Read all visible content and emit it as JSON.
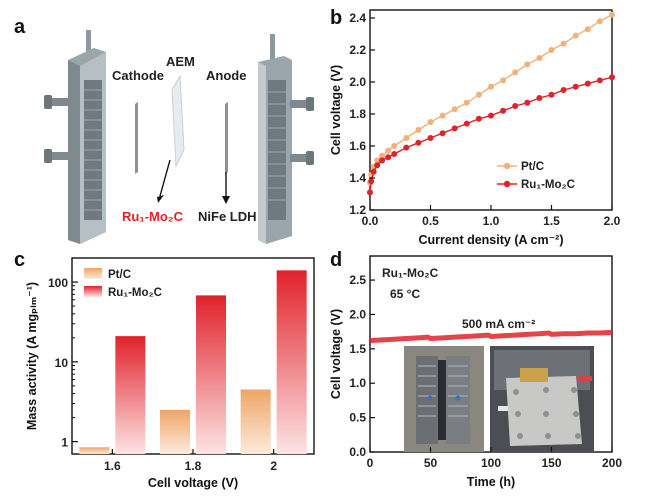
{
  "panels": {
    "a": {
      "letter": "a",
      "labels": {
        "aem": "AEM",
        "cathode": "Cathode",
        "anode": "Anode",
        "cathode_catalyst": "Ru₁-Mo₂C",
        "anode_catalyst": "NiFe LDH"
      },
      "colors": {
        "catalyst_red": "#e0222a"
      }
    },
    "b": {
      "letter": "b"
    },
    "c": {
      "letter": "c"
    },
    "d": {
      "letter": "d"
    }
  },
  "chart_data": [
    {
      "id": "b",
      "type": "line",
      "xlabel": "Current density (A cm⁻²)",
      "ylabel": "Cell voltage (V)",
      "xlim": [
        0,
        2.0
      ],
      "ylim": [
        1.2,
        2.45
      ],
      "xticks": [
        "0.0",
        "0.5",
        "1.0",
        "1.5",
        "2.0"
      ],
      "yticks": [
        "1.2",
        "1.4",
        "1.6",
        "1.8",
        "2.0",
        "2.2",
        "2.4"
      ],
      "legend": "lower-right",
      "series": [
        {
          "name": "Pt/C",
          "color": "#f2b07a",
          "x": [
            0,
            0.01,
            0.03,
            0.06,
            0.1,
            0.15,
            0.2,
            0.3,
            0.4,
            0.5,
            0.6,
            0.7,
            0.8,
            0.9,
            1.0,
            1.1,
            1.2,
            1.3,
            1.4,
            1.5,
            1.6,
            1.7,
            1.8,
            1.9,
            2.0
          ],
          "y": [
            1.37,
            1.42,
            1.47,
            1.51,
            1.54,
            1.57,
            1.6,
            1.65,
            1.7,
            1.75,
            1.79,
            1.83,
            1.87,
            1.92,
            1.97,
            2.01,
            2.06,
            2.11,
            2.15,
            2.2,
            2.24,
            2.29,
            2.33,
            2.38,
            2.42
          ]
        },
        {
          "name": "Ru₁-Mo₂C",
          "color": "#e0222a",
          "x": [
            0,
            0.01,
            0.03,
            0.06,
            0.1,
            0.15,
            0.2,
            0.3,
            0.4,
            0.5,
            0.6,
            0.7,
            0.8,
            0.9,
            1.0,
            1.1,
            1.2,
            1.3,
            1.4,
            1.5,
            1.6,
            1.7,
            1.8,
            1.9,
            2.0
          ],
          "y": [
            1.31,
            1.38,
            1.44,
            1.48,
            1.51,
            1.53,
            1.55,
            1.59,
            1.62,
            1.65,
            1.68,
            1.71,
            1.74,
            1.77,
            1.79,
            1.82,
            1.85,
            1.87,
            1.9,
            1.92,
            1.95,
            1.97,
            1.99,
            2.01,
            2.03
          ]
        }
      ]
    },
    {
      "id": "c",
      "type": "bar",
      "xlabel": "Cell voltage (V)",
      "ylabel": "Mass activity (A mgₚₗₘ⁻¹)",
      "yscale": "log",
      "ylim": [
        0.7,
        200
      ],
      "yticks": [
        "1",
        "10",
        "100"
      ],
      "categories": [
        "1.6",
        "1.8",
        "2"
      ],
      "legend": "top-left",
      "series": [
        {
          "name": "Pt/C",
          "color": "#f2b07a",
          "values": [
            0.85,
            2.5,
            4.5
          ]
        },
        {
          "name": "Ru₁-Mo₂C",
          "color": "#e0222a",
          "values": [
            21,
            68,
            140
          ]
        }
      ]
    },
    {
      "id": "d",
      "type": "line",
      "xlabel": "Time (h)",
      "ylabel": "Cell voltage (V)",
      "xlim": [
        0,
        200
      ],
      "ylim": [
        0,
        2.85
      ],
      "xticks": [
        "0",
        "50",
        "100",
        "150",
        "200"
      ],
      "yticks": [
        "0.0",
        "0.5",
        "1.0",
        "1.5",
        "2.0",
        "2.5"
      ],
      "annotations": [
        "Ru₁-Mo₂C",
        "65 °C",
        "500 mA cm⁻²"
      ],
      "series": [
        {
          "color": "#e0222a",
          "x": [
            0,
            10,
            20,
            30,
            40,
            48,
            50,
            60,
            70,
            80,
            90,
            98,
            100,
            110,
            120,
            130,
            140,
            148,
            150,
            160,
            170,
            180,
            190,
            200
          ],
          "y": [
            1.62,
            1.63,
            1.64,
            1.65,
            1.66,
            1.67,
            1.65,
            1.66,
            1.67,
            1.68,
            1.69,
            1.7,
            1.68,
            1.69,
            1.7,
            1.71,
            1.72,
            1.73,
            1.71,
            1.72,
            1.72,
            1.73,
            1.73,
            1.74
          ]
        }
      ]
    }
  ]
}
